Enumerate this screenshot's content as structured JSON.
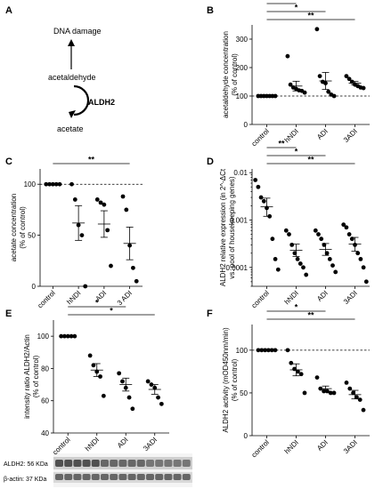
{
  "panels": {
    "A": {
      "letter": "A",
      "dna_damage": "DNA damage",
      "acetaldehyde": "acetaldehyde",
      "enzyme": "ALDH2",
      "acetate": "acetate"
    },
    "E_blot": {
      "row1": "ALDH2: 56 KDa",
      "row2": "β-actin: 37 KDa"
    }
  },
  "chart_data": [
    {
      "id": "B",
      "letter": "B",
      "type": "scatter",
      "ylabel": [
        "acetaldehyde concentration",
        "(% of control)"
      ],
      "categories": [
        "control",
        "hNDI",
        "ADI",
        "3ADI"
      ],
      "ylim": [
        0,
        350
      ],
      "yticks": [
        0,
        100,
        200,
        300
      ],
      "ytick_labels": [
        "0",
        "100",
        "200",
        "300"
      ],
      "log": false,
      "refline": 100,
      "points": [
        [
          100,
          100,
          100,
          100,
          100,
          100,
          100
        ],
        [
          240,
          140,
          130,
          125,
          120,
          118,
          112
        ],
        [
          335,
          170,
          150,
          145,
          115,
          105,
          100
        ],
        [
          170,
          160,
          150,
          140,
          135,
          130,
          128
        ]
      ],
      "means": [
        100,
        135,
        153,
        145
      ],
      "sems": [
        0,
        17,
        30,
        6
      ],
      "brackets": [
        {
          "from": 0,
          "to": 1,
          "label": "*"
        },
        {
          "from": 0,
          "to": 2,
          "label": "*"
        },
        {
          "from": 0,
          "to": 3,
          "label": "**"
        }
      ]
    },
    {
      "id": "C",
      "letter": "C",
      "type": "scatter",
      "ylabel": [
        "acetate concentration",
        "(% of control)"
      ],
      "categories": [
        "control",
        "hNDI",
        "ADI",
        "3 ADI"
      ],
      "ylim": [
        0,
        115
      ],
      "yticks": [
        0,
        50,
        100
      ],
      "ytick_labels": [
        "0",
        "50",
        "100"
      ],
      "log": false,
      "refline": 100,
      "points": [
        [
          100,
          100,
          100,
          100,
          100
        ],
        [
          100,
          85,
          60,
          50,
          0
        ],
        [
          85,
          82,
          80,
          55,
          20
        ],
        [
          88,
          75,
          40,
          18,
          5
        ]
      ],
      "means": [
        100,
        62,
        61,
        42
      ],
      "sems": [
        0,
        17,
        13,
        16
      ],
      "brackets": [
        {
          "from": 0,
          "to": 3,
          "label": "**"
        }
      ]
    },
    {
      "id": "D",
      "letter": "D",
      "type": "scatter",
      "ylabel": [
        "ALDH2 relative expression (in 2^-ΔCt",
        "vs. pool of housekeeping genes)"
      ],
      "categories": [
        "control",
        "hNDI",
        "ADI",
        "3ADI"
      ],
      "ylim": [
        4e-05,
        0.012
      ],
      "yticks": [
        0.0001,
        0.001,
        0.01
      ],
      "ytick_labels": [
        "0.0001",
        "0.001",
        "0.01"
      ],
      "log": true,
      "refline": null,
      "points": [
        [
          0.007,
          0.005,
          0.003,
          0.0025,
          0.0018,
          0.0012,
          0.0004,
          0.00015,
          9e-05
        ],
        [
          0.0006,
          0.0005,
          0.0003,
          0.0002,
          0.00015,
          0.00012,
          0.0001,
          7e-05
        ],
        [
          0.0006,
          0.0005,
          0.0004,
          0.0003,
          0.0002,
          0.00015,
          0.00011,
          8e-05
        ],
        [
          0.0008,
          0.0007,
          0.0005,
          0.0004,
          0.0003,
          0.0002,
          0.00015,
          0.0001,
          5e-05
        ]
      ],
      "means": [
        0.0019,
        0.00023,
        0.00024,
        0.00031
      ],
      "sems_lo": [
        0.0012,
        0.00017,
        0.00018,
        0.00022
      ],
      "sems_hi": [
        0.0029,
        0.00031,
        0.00032,
        0.00043
      ],
      "brackets": [
        {
          "from": 0,
          "to": 1,
          "label": "**"
        },
        {
          "from": 0,
          "to": 2,
          "label": "*"
        },
        {
          "from": 0,
          "to": 3,
          "label": "**"
        }
      ]
    },
    {
      "id": "E",
      "letter": "E",
      "type": "scatter",
      "ylabel": [
        "intensity ratio ALDH2/Actin",
        "(% of control)"
      ],
      "categories": [
        "control",
        "hNDI",
        "ADI",
        "3ADI"
      ],
      "ylim": [
        40,
        110
      ],
      "yticks": [
        40,
        60,
        80,
        100
      ],
      "ytick_labels": [
        "40",
        "60",
        "80",
        "100"
      ],
      "log": false,
      "refline": null,
      "points": [
        [
          100,
          100,
          100,
          100,
          100
        ],
        [
          88,
          82,
          78,
          75,
          63
        ],
        [
          77,
          72,
          68,
          62,
          55
        ],
        [
          72,
          70,
          68,
          62,
          58
        ]
      ],
      "means": [
        100,
        79,
        70,
        67
      ],
      "sems": [
        0,
        4,
        4,
        3
      ],
      "brackets": [
        {
          "from": 0,
          "to": 2,
          "label": "*"
        },
        {
          "from": 0,
          "to": 3,
          "label": "*"
        }
      ]
    },
    {
      "id": "F",
      "letter": "F",
      "type": "scatter",
      "ylabel": [
        "ALDH2 activity (mOD450nm/min)",
        "(% of control)"
      ],
      "categories": [
        "control",
        "hNDI",
        "ADI",
        "3ADI"
      ],
      "ylim": [
        0,
        130
      ],
      "yticks": [
        0,
        50,
        100
      ],
      "ytick_labels": [
        "0",
        "50",
        "100"
      ],
      "log": false,
      "refline": 100,
      "points": [
        [
          100,
          100,
          100,
          100,
          100,
          100
        ],
        [
          100,
          85,
          78,
          75,
          72,
          50
        ],
        [
          68,
          55,
          52,
          52,
          50,
          50
        ],
        [
          62,
          55,
          50,
          45,
          42,
          30
        ]
      ],
      "means": [
        100,
        77,
        55,
        48
      ],
      "sems": [
        0,
        7,
        3,
        5
      ],
      "brackets": [
        {
          "from": 0,
          "to": 2,
          "label": "*"
        },
        {
          "from": 0,
          "to": 3,
          "label": "**"
        }
      ]
    }
  ]
}
